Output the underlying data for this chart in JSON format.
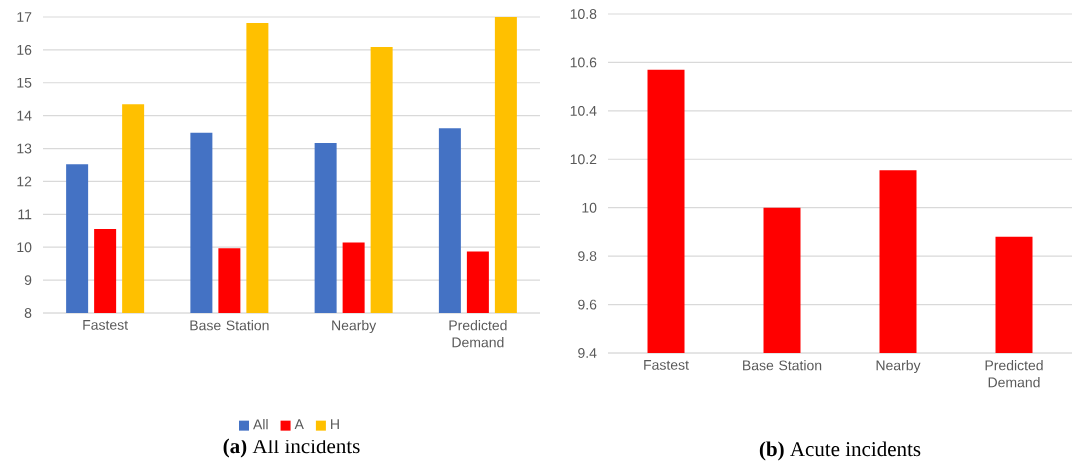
{
  "chart_data": [
    {
      "type": "bar",
      "title": "**(a)** All incidents",
      "categories": [
        "Fastest",
        "Base Station",
        "Nearby",
        "Predicted Demand"
      ],
      "series": [
        {
          "name": "All",
          "color": "#4472c4",
          "values": [
            12.52,
            13.48,
            13.17,
            13.62
          ]
        },
        {
          "name": "A",
          "color": "#ff0000",
          "values": [
            10.55,
            9.97,
            10.14,
            9.87
          ]
        },
        {
          "name": "H",
          "color": "#ffc000",
          "values": [
            14.35,
            16.82,
            16.09,
            17.0
          ]
        }
      ],
      "ylim": [
        8,
        17
      ],
      "yticks": [
        8,
        9,
        10,
        11,
        12,
        13,
        14,
        15,
        16,
        17
      ],
      "grid": "y",
      "legend": "bottom"
    },
    {
      "type": "bar",
      "title": "**(b)** Acute incidents",
      "categories": [
        "Fastest",
        "Base Station",
        "Nearby",
        "Predicted Demand"
      ],
      "series": [
        {
          "color": "#ff0000",
          "values": [
            10.57,
            10.0,
            10.155,
            9.88
          ]
        }
      ],
      "ylim": [
        9.4,
        10.8
      ],
      "yticks": [
        9.4,
        9.6,
        9.8,
        10,
        10.2,
        10.4,
        10.6,
        10.8
      ],
      "grid": "y"
    }
  ]
}
